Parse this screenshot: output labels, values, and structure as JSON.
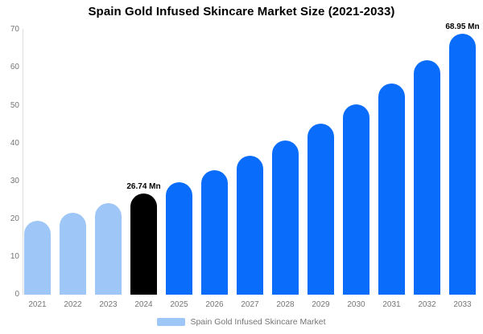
{
  "title": "Spain Gold Infused Skincare Market Size (2021-2033)",
  "legend": {
    "label": "Spain Gold Infused Skincare Market",
    "swatch_color": "#9EC7F7"
  },
  "colors": {
    "light_blue": "#9EC7F7",
    "blue": "#0A6CFA",
    "black": "#000000",
    "axis_line": "#DDDDDD",
    "tick_text": "#757575"
  },
  "chart_data": {
    "type": "bar",
    "title": "Spain Gold Infused Skincare Market Size (2021-2033)",
    "categories": [
      "2021",
      "2022",
      "2023",
      "2024",
      "2025",
      "2026",
      "2027",
      "2028",
      "2029",
      "2030",
      "2031",
      "2032",
      "2033"
    ],
    "values": [
      19.5,
      21.7,
      24.1,
      26.74,
      29.7,
      33.0,
      36.7,
      40.7,
      45.3,
      50.3,
      55.9,
      62.1,
      68.95
    ],
    "unit": "Mn",
    "bar_colors": [
      "#9EC7F7",
      "#9EC7F7",
      "#9EC7F7",
      "#000000",
      "#0A6CFA",
      "#0A6CFA",
      "#0A6CFA",
      "#0A6CFA",
      "#0A6CFA",
      "#0A6CFA",
      "#0A6CFA",
      "#0A6CFA",
      "#0A6CFA"
    ],
    "data_labels": [
      {
        "index": 3,
        "text": "26.74 Mn"
      },
      {
        "index": 12,
        "text": "68.95 Mn"
      }
    ],
    "xlabel": "",
    "ylabel": "",
    "ylim": [
      0,
      70
    ],
    "yticks": [
      0,
      10,
      20,
      30,
      40,
      50,
      60,
      70
    ],
    "grid": false,
    "legend_position": "bottom",
    "legend_entries": [
      "Spain Gold Infused Skincare Market"
    ]
  }
}
